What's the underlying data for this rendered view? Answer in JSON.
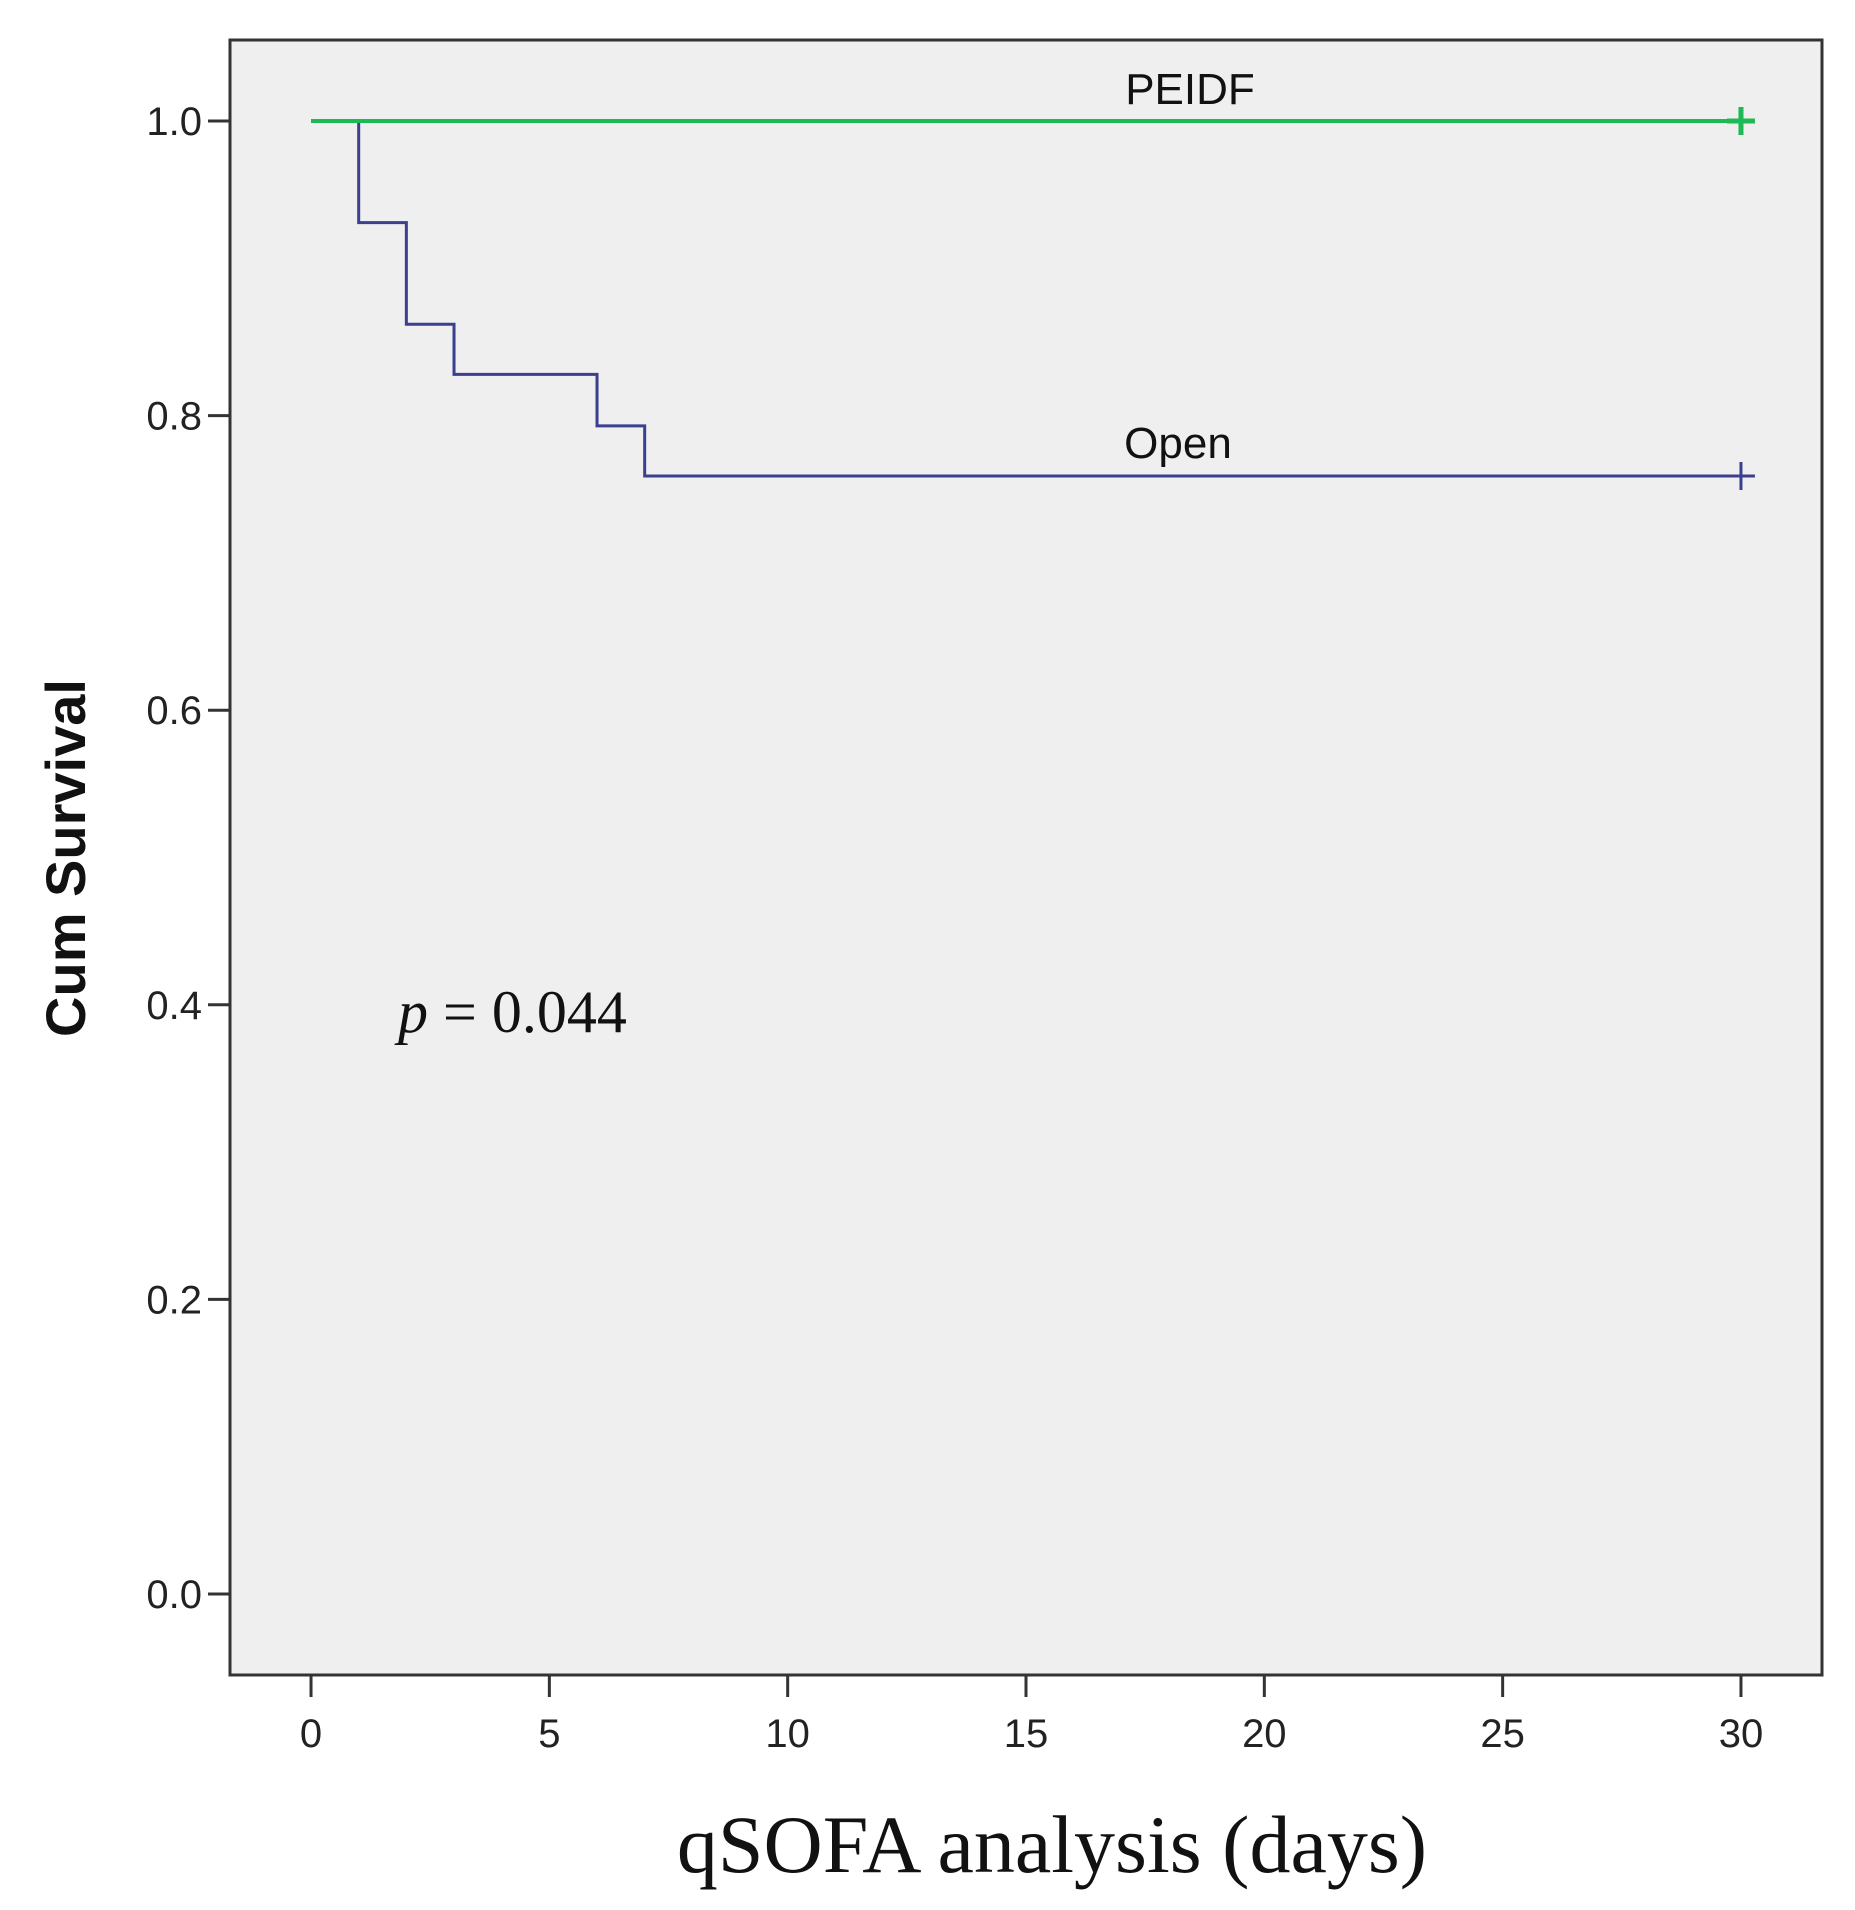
{
  "chart_data": {
    "type": "line",
    "subtype": "kaplan-meier step curve",
    "title": "",
    "xlabel": "qSOFA analysis (days)",
    "ylabel": "Cum Survival",
    "xlim": [
      -1.7,
      31.7
    ],
    "ylim": [
      -0.055,
      1.055
    ],
    "xticks": [
      0,
      5,
      10,
      15,
      20,
      25,
      30
    ],
    "yticks": [
      0.0,
      0.2,
      0.4,
      0.6,
      0.8,
      1.0
    ],
    "xtick_labels": [
      "0",
      "5",
      "10",
      "15",
      "20",
      "25",
      "30"
    ],
    "ytick_labels": [
      "0.0",
      "0.2",
      "0.4",
      "0.6",
      "0.8",
      "1.0"
    ],
    "grid": false,
    "background": "#efefef",
    "series": [
      {
        "name": "PEIDF",
        "color": "#1db954",
        "steps": [
          [
            0,
            1.0
          ],
          [
            30,
            1.0
          ]
        ],
        "censor_marks": [
          [
            30,
            1.0
          ]
        ]
      },
      {
        "name": "Open",
        "color": "#3b3f8f",
        "steps": [
          [
            0,
            1.0
          ],
          [
            1,
            0.931
          ],
          [
            2,
            0.862
          ],
          [
            3,
            0.828
          ],
          [
            6,
            0.793
          ],
          [
            7,
            0.759
          ],
          [
            30,
            0.759
          ]
        ],
        "censor_marks": [
          [
            30,
            0.759
          ]
        ]
      }
    ],
    "annotation": {
      "p_symbol": "p",
      "p_rest": " = 0.044"
    }
  }
}
